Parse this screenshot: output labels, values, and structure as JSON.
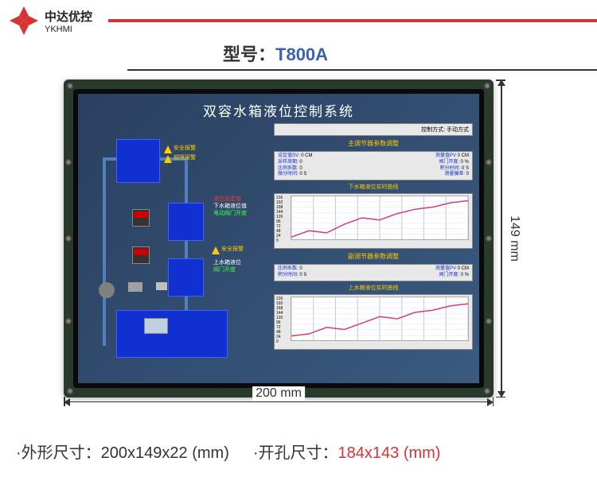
{
  "brand": {
    "cn": "中达优控",
    "en": "YKHMI"
  },
  "model": {
    "label": "型号：",
    "value": "T800A"
  },
  "dimensions": {
    "width_label": "200 mm",
    "height_label": "149 mm"
  },
  "specs": {
    "outline_label": "·外形尺寸：",
    "outline_value": "200x149x22 (mm)",
    "hole_label": "·开孔尺寸：",
    "hole_value": "184x143 (mm)"
  },
  "screen": {
    "title": "双容水箱液位控制系统",
    "control_mode": {
      "label": "控制方式:",
      "value": "手动方式"
    },
    "alarms": {
      "safety": "安全报警",
      "overlimit": "越限报警"
    },
    "legends": {
      "setpoint": "液位设定值",
      "lower": "下水箱液位值",
      "valve": "电动阀门开度",
      "upper": "上水箱液位",
      "valve2": "阀门开度"
    },
    "main_regulator": {
      "title": "主调节器参数调整",
      "rows": [
        {
          "l1": "设定值SV:",
          "v1": "0",
          "u1": "CM",
          "l2": "测量值PV",
          "v2": "0",
          "u2": "CM"
        },
        {
          "l1": "采样周期:",
          "v1": "0",
          "u1": "",
          "l2": "阀门开度:",
          "v2": "0",
          "u2": "%"
        },
        {
          "l1": "比例系数:",
          "v1": "0",
          "u1": "",
          "l2": "积分时间:",
          "v2": "0",
          "u2": "S"
        },
        {
          "l1": "微分时间:",
          "v1": "0",
          "u1": "S",
          "l2": "测量偏差:",
          "v2": "0",
          "u2": ""
        }
      ]
    },
    "chart1": {
      "title": "下水箱液位实时曲线",
      "yticks": [
        "216",
        "192",
        "168",
        "144",
        "120",
        "96",
        "72",
        "48",
        "24",
        "0"
      ],
      "color": "#d04080",
      "grid_color": "#c0d0e0",
      "points": [
        [
          0,
          0.05
        ],
        [
          0.1,
          0.2
        ],
        [
          0.2,
          0.15
        ],
        [
          0.3,
          0.35
        ],
        [
          0.4,
          0.5
        ],
        [
          0.5,
          0.45
        ],
        [
          0.6,
          0.6
        ],
        [
          0.7,
          0.7
        ],
        [
          0.8,
          0.75
        ],
        [
          0.9,
          0.85
        ],
        [
          1,
          0.9
        ]
      ]
    },
    "sub_regulator": {
      "title": "副调节器参数调整",
      "rows": [
        {
          "l1": "比例系数:",
          "v1": "0",
          "u1": "",
          "l2": "测量值PV",
          "v2": "0",
          "u2": "CM"
        },
        {
          "l1": "积分时间:",
          "v1": "0",
          "u1": "S",
          "l2": "阀门开度:",
          "v2": "0",
          "u2": "%"
        }
      ]
    },
    "chart2": {
      "title": "上水箱液位实时曲线",
      "yticks": [
        "216",
        "192",
        "168",
        "144",
        "120",
        "96",
        "72",
        "48",
        "24",
        "0"
      ],
      "color": "#d04080",
      "grid_color": "#c0d0e0",
      "points": [
        [
          0,
          0.1
        ],
        [
          0.1,
          0.15
        ],
        [
          0.2,
          0.3
        ],
        [
          0.3,
          0.25
        ],
        [
          0.4,
          0.4
        ],
        [
          0.5,
          0.55
        ],
        [
          0.6,
          0.5
        ],
        [
          0.7,
          0.65
        ],
        [
          0.8,
          0.7
        ],
        [
          0.9,
          0.8
        ],
        [
          1,
          0.85
        ]
      ]
    }
  },
  "colors": {
    "brand_red": "#d63333",
    "model_blue": "#3a5fb8",
    "pcb_green": "#2a3a2a",
    "screen_bg1": "#2a4060",
    "screen_bg2": "#3a5a80",
    "tank_blue": "#1030d0",
    "accent_yellow": "#ffcc00"
  }
}
